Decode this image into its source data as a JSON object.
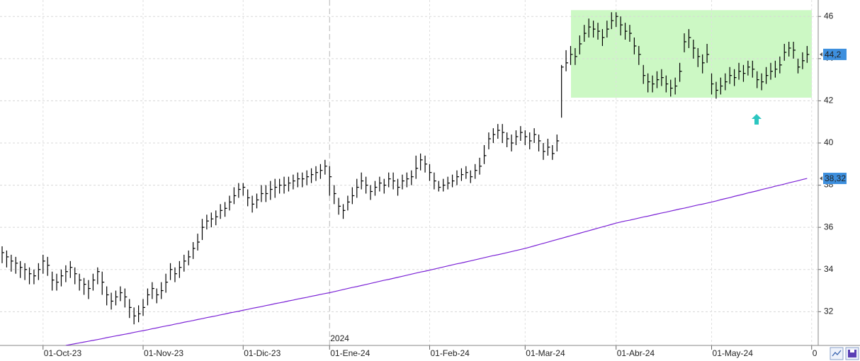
{
  "chart_data": {
    "type": "ohlc",
    "categories": [
      null,
      null,
      null,
      null,
      null,
      null,
      null,
      null,
      null,
      "01-Oct-23",
      null,
      null,
      null,
      null,
      null,
      null,
      null,
      null,
      null,
      null,
      null,
      null,
      null,
      null,
      null,
      null,
      null,
      null,
      null,
      null,
      null,
      "01-Nov-23",
      null,
      null,
      null,
      null,
      null,
      null,
      null,
      null,
      null,
      null,
      null,
      null,
      null,
      null,
      null,
      null,
      null,
      null,
      null,
      null,
      null,
      "01-Dic-23",
      null,
      null,
      null,
      null,
      null,
      null,
      null,
      null,
      null,
      null,
      null,
      null,
      null,
      null,
      null,
      null,
      null,
      null,
      "01-Ene-24",
      null,
      null,
      null,
      null,
      null,
      null,
      null,
      null,
      null,
      null,
      null,
      null,
      null,
      null,
      null,
      null,
      null,
      null,
      null,
      null,
      null,
      "01-Feb-24",
      null,
      null,
      null,
      null,
      null,
      null,
      null,
      null,
      null,
      null,
      null,
      null,
      null,
      null,
      null,
      null,
      null,
      null,
      null,
      null,
      "01-Mar-24",
      null,
      null,
      null,
      null,
      null,
      null,
      null,
      null,
      null,
      null,
      null,
      null,
      null,
      null,
      null,
      null,
      null,
      null,
      null,
      "01-Abr-24",
      null,
      null,
      null,
      null,
      null,
      null,
      null,
      null,
      null,
      null,
      null,
      null,
      null,
      null,
      null,
      null,
      null,
      null,
      null,
      null,
      "01-May-24",
      null,
      null,
      null,
      null,
      null,
      null,
      null,
      null,
      null,
      null,
      null,
      null,
      null,
      null,
      null,
      null,
      null,
      null,
      null,
      null,
      null,
      "0"
    ],
    "high": [
      35.1,
      34.9,
      34.7,
      34.6,
      34.4,
      34.3,
      34.1,
      34.0,
      34.3,
      34.7,
      34.6,
      33.9,
      33.8,
      34.0,
      34.2,
      34.4,
      34.1,
      33.8,
      33.6,
      33.5,
      33.8,
      34.1,
      33.9,
      33.2,
      32.9,
      33.0,
      33.2,
      33.1,
      32.6,
      32.2,
      32.3,
      32.6,
      33.1,
      33.4,
      33.1,
      33.4,
      33.8,
      34.3,
      34.1,
      34.4,
      34.7,
      34.9,
      35.3,
      35.7,
      36.4,
      36.6,
      36.7,
      36.8,
      37.1,
      37.2,
      37.5,
      37.9,
      38.1,
      38.1,
      37.8,
      37.5,
      37.6,
      38.0,
      38.0,
      38.2,
      38.3,
      38.3,
      38.4,
      38.4,
      38.5,
      38.6,
      38.6,
      38.7,
      38.8,
      38.9,
      39.0,
      39.2,
      38.9,
      38.0,
      37.4,
      37.1,
      37.5,
      37.9,
      38.3,
      38.6,
      38.4,
      38.0,
      38.2,
      38.4,
      38.3,
      38.6,
      38.6,
      38.3,
      38.5,
      38.6,
      38.7,
      39.4,
      39.5,
      39.4,
      39.0,
      38.6,
      38.2,
      38.3,
      38.4,
      38.5,
      38.7,
      38.8,
      38.9,
      38.7,
      39.0,
      39.3,
      39.9,
      40.5,
      40.7,
      40.9,
      40.9,
      40.5,
      40.4,
      40.6,
      40.8,
      40.6,
      40.5,
      40.7,
      40.4,
      40.0,
      40.2,
      39.9,
      40.4,
      43.7,
      44.4,
      44.6,
      44.5,
      45.1,
      45.6,
      45.9,
      45.8,
      45.7,
      45.4,
      45.8,
      46.2,
      46.2,
      46.0,
      45.7,
      45.6,
      45.0,
      44.6,
      43.7,
      43.3,
      43.2,
      43.4,
      43.5,
      43.2,
      43.0,
      43.1,
      43.8,
      45.2,
      45.4,
      44.9,
      44.5,
      44.2,
      44.7,
      43.3,
      42.9,
      43.1,
      43.3,
      43.6,
      43.5,
      43.8,
      43.7,
      43.9,
      43.9,
      43.4,
      43.3,
      43.6,
      43.8,
      43.9,
      44.1,
      44.7,
      44.8,
      44.8,
      44.0,
      44.3,
      44.6,
      null
    ],
    "low": [
      34.3,
      34.1,
      33.9,
      33.8,
      33.6,
      33.5,
      33.3,
      33.3,
      33.5,
      33.8,
      33.7,
      33.0,
      33.0,
      33.2,
      33.4,
      33.6,
      33.3,
      33.0,
      32.8,
      32.6,
      33.0,
      33.3,
      32.8,
      32.3,
      32.1,
      32.3,
      32.5,
      32.2,
      31.7,
      31.4,
      31.5,
      31.8,
      32.3,
      32.6,
      32.4,
      32.6,
      32.9,
      33.5,
      33.4,
      33.6,
      33.9,
      34.2,
      34.5,
      34.9,
      35.4,
      35.9,
      36.0,
      36.1,
      36.4,
      36.5,
      36.8,
      37.1,
      37.4,
      37.5,
      37.0,
      36.7,
      36.9,
      37.2,
      37.2,
      37.3,
      37.4,
      37.6,
      37.6,
      37.7,
      37.8,
      37.9,
      37.9,
      38.0,
      38.1,
      38.2,
      38.3,
      38.5,
      37.5,
      37.1,
      36.6,
      36.4,
      36.8,
      37.1,
      37.4,
      37.8,
      37.6,
      37.3,
      37.5,
      37.7,
      37.6,
      37.9,
      37.8,
      37.5,
      37.8,
      37.9,
      38.0,
      38.3,
      38.7,
      38.6,
      38.2,
      37.8,
      37.7,
      37.7,
      37.8,
      37.9,
      38.0,
      38.2,
      38.3,
      38.1,
      38.3,
      38.5,
      39.0,
      39.7,
      40.0,
      40.2,
      40.0,
      39.8,
      39.6,
      39.9,
      40.1,
      39.9,
      39.7,
      40.0,
      39.6,
      39.2,
      39.4,
      39.2,
      39.6,
      41.2,
      43.4,
      43.7,
      43.7,
      44.2,
      44.8,
      45.0,
      45.0,
      44.9,
      44.6,
      45.0,
      45.4,
      45.5,
      45.1,
      44.9,
      44.8,
      44.2,
      43.7,
      42.8,
      42.4,
      42.4,
      42.6,
      42.7,
      42.4,
      42.2,
      42.3,
      42.9,
      44.3,
      44.5,
      44.0,
      43.6,
      43.3,
      43.8,
      42.3,
      42.1,
      42.3,
      42.5,
      42.8,
      42.7,
      43.0,
      42.9,
      43.2,
      43.1,
      42.6,
      42.5,
      42.8,
      43.0,
      43.1,
      43.3,
      43.9,
      44.1,
      44.0,
      43.3,
      43.5,
      43.8,
      null
    ],
    "close": [
      34.8,
      34.6,
      34.4,
      34.3,
      34.1,
      34.0,
      33.8,
      33.7,
      34.0,
      34.4,
      34.2,
      33.5,
      33.4,
      33.7,
      33.9,
      34.1,
      33.8,
      33.5,
      33.3,
      33.1,
      33.5,
      33.9,
      33.4,
      32.8,
      32.5,
      32.7,
      32.9,
      32.7,
      32.2,
      31.8,
      31.9,
      32.2,
      32.8,
      33.1,
      32.8,
      33.0,
      33.4,
      34.0,
      33.8,
      34.1,
      34.4,
      34.6,
      35.0,
      35.3,
      36.0,
      36.3,
      36.4,
      36.5,
      36.8,
      36.9,
      37.2,
      37.5,
      37.8,
      37.9,
      37.4,
      37.1,
      37.3,
      37.6,
      37.6,
      37.8,
      37.9,
      38.0,
      38.0,
      38.1,
      38.2,
      38.3,
      38.3,
      38.4,
      38.5,
      38.6,
      38.7,
      38.9,
      38.4,
      37.6,
      37.0,
      36.8,
      37.2,
      37.5,
      37.9,
      38.2,
      38.0,
      37.7,
      37.9,
      38.1,
      38.0,
      38.3,
      38.2,
      37.9,
      38.2,
      38.3,
      38.4,
      38.8,
      39.2,
      39.0,
      38.6,
      38.2,
      37.9,
      38.0,
      38.1,
      38.2,
      38.4,
      38.5,
      38.6,
      38.4,
      38.7,
      38.9,
      39.4,
      40.2,
      40.4,
      40.6,
      40.5,
      40.2,
      40.0,
      40.3,
      40.5,
      40.3,
      40.1,
      40.4,
      40.1,
      39.6,
      39.8,
      39.5,
      40.1,
      43.6,
      43.8,
      44.2,
      44.1,
      44.7,
      45.2,
      45.5,
      45.4,
      45.3,
      45.0,
      45.4,
      45.8,
      46.0,
      45.6,
      45.3,
      45.2,
      44.6,
      44.2,
      43.2,
      42.9,
      42.8,
      43.0,
      43.1,
      42.8,
      42.6,
      42.7,
      43.4,
      44.8,
      45.0,
      44.5,
      44.1,
      43.8,
      44.2,
      42.8,
      42.5,
      42.7,
      42.9,
      43.2,
      43.1,
      43.4,
      43.3,
      43.6,
      43.5,
      43.0,
      42.9,
      43.2,
      43.4,
      43.5,
      43.7,
      44.3,
      44.5,
      44.4,
      43.6,
      43.9,
      44.2,
      null
    ],
    "color": "#000000",
    "moving_average": {
      "color": "#7b22d6",
      "values": [
        null,
        null,
        null,
        null,
        null,
        null,
        null,
        null,
        null,
        null,
        null,
        null,
        null,
        null,
        30.4,
        30.44,
        30.48,
        30.52,
        30.56,
        30.6,
        30.64,
        30.68,
        30.72,
        30.77,
        30.81,
        30.85,
        30.89,
        30.93,
        30.97,
        31.02,
        31.06,
        31.1,
        31.14,
        31.19,
        31.23,
        31.28,
        31.32,
        31.36,
        31.41,
        31.45,
        31.5,
        31.54,
        31.58,
        31.63,
        31.67,
        31.72,
        31.76,
        31.8,
        31.85,
        31.89,
        31.94,
        31.98,
        32.02,
        32.07,
        32.11,
        32.16,
        32.2,
        32.24,
        32.29,
        32.33,
        32.38,
        32.42,
        32.46,
        32.51,
        32.55,
        32.6,
        32.64,
        32.68,
        32.73,
        32.77,
        32.82,
        32.86,
        32.9,
        32.95,
        33.0,
        33.05,
        33.1,
        33.15,
        33.19,
        33.24,
        33.29,
        33.34,
        33.39,
        33.44,
        33.49,
        33.53,
        33.58,
        33.63,
        33.68,
        33.73,
        33.78,
        33.83,
        33.88,
        33.92,
        33.97,
        34.02,
        34.07,
        34.12,
        34.17,
        34.22,
        34.27,
        34.31,
        34.36,
        34.41,
        34.46,
        34.51,
        34.56,
        34.61,
        34.66,
        34.7,
        34.75,
        34.8,
        34.85,
        34.9,
        34.95,
        35.0,
        35.06,
        35.12,
        35.18,
        35.24,
        35.3,
        35.36,
        35.42,
        35.48,
        35.54,
        35.6,
        35.66,
        35.72,
        35.78,
        35.84,
        35.9,
        35.96,
        36.02,
        36.08,
        36.14,
        36.2,
        36.25,
        36.3,
        36.34,
        36.39,
        36.44,
        36.49,
        36.53,
        36.58,
        36.63,
        36.68,
        36.72,
        36.77,
        36.82,
        36.87,
        36.91,
        36.96,
        37.01,
        37.06,
        37.1,
        37.15,
        37.2,
        37.25,
        37.31,
        37.36,
        37.41,
        37.47,
        37.52,
        37.57,
        37.63,
        37.68,
        37.73,
        37.79,
        37.84,
        37.89,
        37.95,
        38.0,
        38.05,
        38.11,
        38.16,
        38.21,
        38.27,
        38.32,
        null
      ]
    },
    "ylim": [
      30.4,
      46.78
    ],
    "yticks": [
      32,
      34,
      36,
      38,
      40,
      42,
      44,
      46
    ],
    "grid": true,
    "year_marker": "2024",
    "zone": {
      "ylim": [
        42.15,
        46.3
      ],
      "color": "#ccf8c4"
    },
    "last_labels": [
      {
        "value": 44.2,
        "label": "44,2"
      },
      {
        "value": 38.32,
        "label": "38,32"
      }
    ],
    "tag_color": "#3d8fde"
  }
}
